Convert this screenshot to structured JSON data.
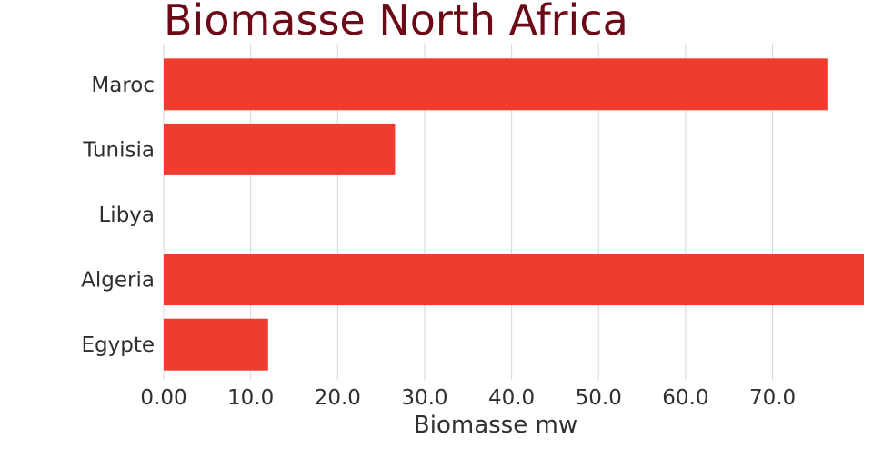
{
  "chart_data": {
    "type": "bar",
    "orientation": "horizontal",
    "title": "Biomasse North Africa",
    "xlabel": "Biomasse mw",
    "ylabel": "",
    "categories": [
      "Maroc",
      "Tunisia",
      "Libya",
      "Algeria",
      "Egypte"
    ],
    "values": [
      76.3,
      26.6,
      0,
      80.5,
      12.0
    ],
    "xlim": [
      0,
      80.5
    ],
    "xticks": [
      0,
      10,
      20,
      30,
      40,
      50,
      60,
      70
    ],
    "xtick_labels": [
      "0.00",
      "10.0",
      "20.0",
      "30.0",
      "40.0",
      "50.0",
      "60.0",
      "70.0"
    ],
    "grid": true,
    "bar_color": "#ef3c2f",
    "title_color": "#6b0a16",
    "text_color": "#2f2f2f",
    "grid_color": "#d6d6d6"
  }
}
